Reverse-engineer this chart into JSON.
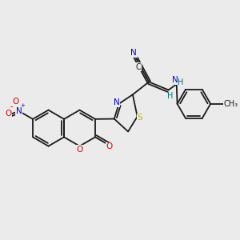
{
  "background_color": "#ebebeb",
  "bond_color": "#1a1a1a",
  "bond_width": 1.3,
  "colors": {
    "C": "#1a1a1a",
    "N": "#0000dd",
    "O": "#dd0000",
    "S": "#bbbb00",
    "H": "#007070"
  },
  "font_size": 7.5
}
